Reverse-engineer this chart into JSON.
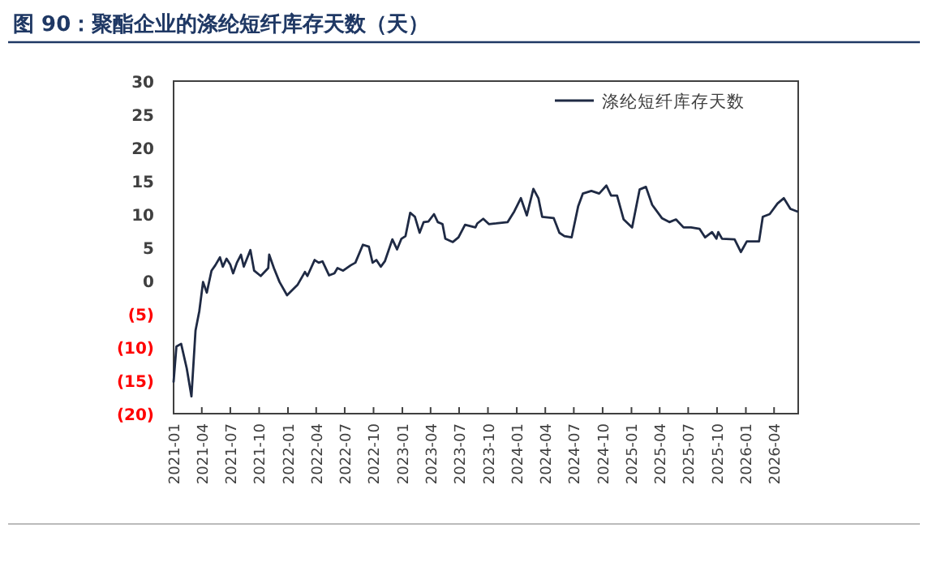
{
  "chart_data": {
    "type": "line",
    "title": "图 90：聚酯企业的涤纶短纤库存天数（天）",
    "x": [
      "2021-01-01",
      "2021-01-10",
      "2021-01-25",
      "2021-02-12",
      "2021-02-27",
      "2021-03-12",
      "2021-03-24",
      "2021-04-05",
      "2021-04-17",
      "2021-05-02",
      "2021-05-14",
      "2021-05-29",
      "2021-06-07",
      "2021-06-19",
      "2021-07-01",
      "2021-07-10",
      "2021-07-22",
      "2021-08-04",
      "2021-08-13",
      "2021-09-03",
      "2021-09-15",
      "2021-10-06",
      "2021-10-30",
      "2021-11-02",
      "2021-11-17",
      "2021-12-05",
      "2021-12-29",
      "2022-02-01",
      "2022-02-24",
      "2022-03-04",
      "2022-03-27",
      "2022-04-09",
      "2022-04-21",
      "2022-05-12",
      "2022-05-29",
      "2022-06-08",
      "2022-06-26",
      "2022-07-20",
      "2022-08-04",
      "2022-08-28",
      "2022-09-16",
      "2022-09-28",
      "2022-10-10",
      "2022-10-24",
      "2022-11-06",
      "2022-11-30",
      "2022-12-15",
      "2022-12-29",
      "2023-01-11",
      "2023-01-26",
      "2023-02-10",
      "2023-02-25",
      "2023-03-10",
      "2023-03-25",
      "2023-04-12",
      "2023-04-24",
      "2023-05-09",
      "2023-05-18",
      "2023-06-11",
      "2023-06-29",
      "2023-07-20",
      "2023-08-22",
      "2023-08-28",
      "2023-09-16",
      "2023-10-04",
      "2023-10-27",
      "2023-12-03",
      "2023-12-24",
      "2024-01-14",
      "2024-02-02",
      "2024-02-23",
      "2024-03-10",
      "2024-03-22",
      "2024-04-28",
      "2024-05-16",
      "2024-06-01",
      "2024-06-24",
      "2024-07-15",
      "2024-07-30",
      "2024-08-26",
      "2024-09-20",
      "2024-10-13",
      "2024-10-28",
      "2024-11-16",
      "2024-12-07",
      "2025-01-03",
      "2025-01-27",
      "2025-02-16",
      "2025-03-08",
      "2025-04-08",
      "2025-05-02",
      "2025-05-23",
      "2025-06-16",
      "2025-07-10",
      "2025-08-06",
      "2025-08-24",
      "2025-09-15",
      "2025-09-29",
      "2025-10-05",
      "2025-10-17",
      "2025-11-26",
      "2025-12-16",
      "2026-01-04",
      "2026-02-12",
      "2026-02-24",
      "2026-03-18",
      "2026-04-12",
      "2026-05-02",
      "2026-05-23",
      "2026-06-14"
    ],
    "series": [
      {
        "name": "涤纶短纤库存天数",
        "color": "#1f2a44",
        "values": [
          -15.2,
          -9.9,
          -9.5,
          -13.2,
          -17.4,
          -7.5,
          -4.6,
          -0.2,
          -1.8,
          1.5,
          2.3,
          3.5,
          2.1,
          3.3,
          2.4,
          1.1,
          2.7,
          3.9,
          2.1,
          4.6,
          1.5,
          0.7,
          1.9,
          3.9,
          1.9,
          -0.2,
          -2.2,
          -0.6,
          1.3,
          0.7,
          3.1,
          2.7,
          2.9,
          0.8,
          1.1,
          1.9,
          1.5,
          2.3,
          2.7,
          5.4,
          5.1,
          2.7,
          3.1,
          2.1,
          2.9,
          6.2,
          4.7,
          6.3,
          6.7,
          10.2,
          9.6,
          7.2,
          8.8,
          8.9,
          10.0,
          8.8,
          8.5,
          6.3,
          5.8,
          6.5,
          8.4,
          8.0,
          8.6,
          9.3,
          8.5,
          8.6,
          8.8,
          10.4,
          12.4,
          9.8,
          13.8,
          12.4,
          9.6,
          9.4,
          7.2,
          6.7,
          6.5,
          11.2,
          13.1,
          13.5,
          13.1,
          14.3,
          12.8,
          12.8,
          9.2,
          8.0,
          13.7,
          14.1,
          11.4,
          9.4,
          8.8,
          9.2,
          8.0,
          8.0,
          7.8,
          6.5,
          7.3,
          6.3,
          7.3,
          6.3,
          6.2,
          4.3,
          5.9,
          5.9,
          9.6,
          10.0,
          11.6,
          12.4,
          10.8,
          10.4
        ]
      }
    ],
    "xlim": [
      "2021-01-01",
      "2026-06-17"
    ],
    "xticks": [
      "2021-01",
      "2021-04",
      "2021-07",
      "2021-10",
      "2022-01",
      "2022-04",
      "2022-07",
      "2022-10",
      "2023-01",
      "2023-04",
      "2023-07",
      "2023-10",
      "2024-01",
      "2024-04",
      "2024-07",
      "2024-10",
      "2025-01",
      "2025-04",
      "2025-07",
      "2025-10",
      "2026-01",
      "2026-04"
    ],
    "ylim": [
      -20,
      30
    ],
    "yticks": [
      30,
      25,
      20,
      15,
      10,
      5,
      0,
      {
        "value": -5,
        "label": "(5)"
      },
      {
        "value": -10,
        "label": "(10)"
      },
      {
        "value": -15,
        "label": "(15)"
      },
      {
        "value": -20,
        "label": "(20)"
      }
    ],
    "grid": false,
    "legend": "top right",
    "line_style": "solid",
    "marker": "none"
  }
}
